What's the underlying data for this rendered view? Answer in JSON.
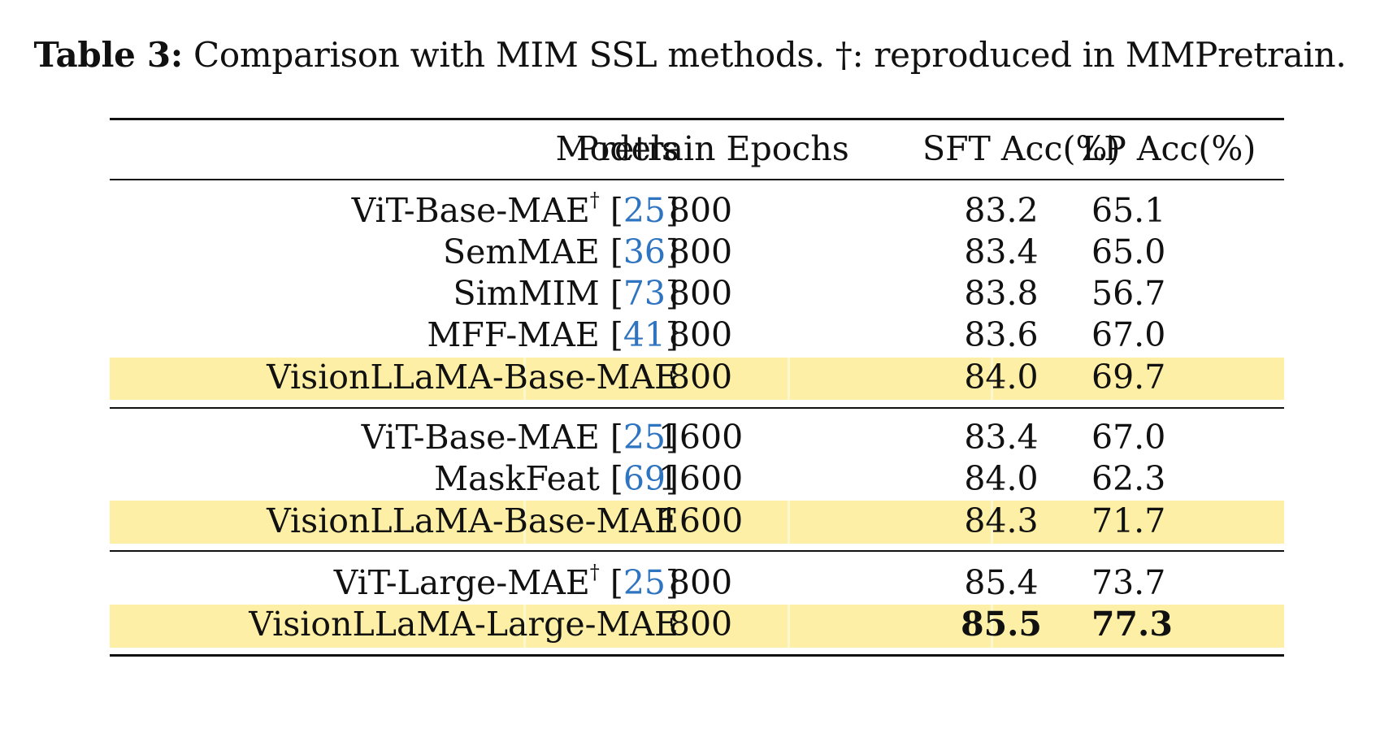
{
  "caption": {
    "label": "Table 3:",
    "text": "Comparison with MIM SSL methods. †: reproduced in MMPretrain."
  },
  "table": {
    "headers": {
      "models": "Models",
      "epochs": "Pretrain Epochs",
      "sft": "SFT Acc(%)",
      "lp": "LP Acc(%)"
    },
    "rows": [
      {
        "model": "ViT-Base-MAE",
        "dagger": "†",
        "cite": "25",
        "epochs": "800",
        "sft": "83.2",
        "lp": "65.1"
      },
      {
        "model": "SemMAE",
        "cite": "36",
        "epochs": "800",
        "sft": "83.4",
        "lp": "65.0"
      },
      {
        "model": "SimMIM",
        "cite": "73",
        "epochs": "800",
        "sft": "83.8",
        "lp": "56.7"
      },
      {
        "model": "MFF-MAE",
        "cite": "41",
        "epochs": "800",
        "sft": "83.6",
        "lp": "67.0"
      },
      {
        "model": "VisionLLaMA-Base-MAE",
        "epochs": "800",
        "sft": "84.0",
        "lp": "69.7",
        "highlight": true
      },
      {
        "model": "ViT-Base-MAE",
        "cite": "25",
        "epochs": "1600",
        "sft": "83.4",
        "lp": "67.0"
      },
      {
        "model": "MaskFeat",
        "cite": "69",
        "epochs": "1600",
        "sft": "84.0",
        "lp": "62.3"
      },
      {
        "model": "VisionLLaMA-Base-MAE",
        "epochs": "1600",
        "sft": "84.3",
        "lp": "71.7",
        "highlight": true
      },
      {
        "model": "ViT-Large-MAE",
        "dagger": "†",
        "cite": "25",
        "epochs": "800",
        "sft": "85.4",
        "lp": "73.7"
      },
      {
        "model": "VisionLLaMA-Large-MAE",
        "epochs": "800",
        "sft": "85.5",
        "lp": "77.3",
        "highlight": true,
        "bold_scores": true
      }
    ]
  },
  "colors": {
    "highlight": "#fdf0a6",
    "citation": "#2f74c0"
  }
}
